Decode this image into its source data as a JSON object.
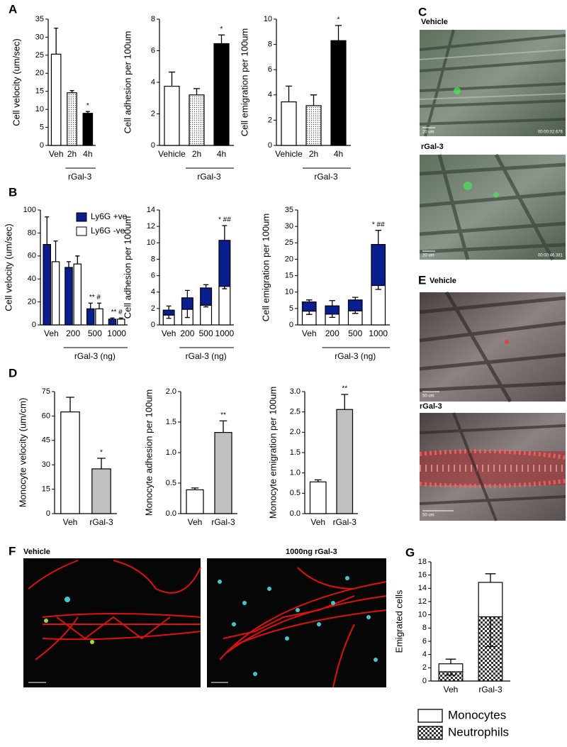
{
  "panel_labels": [
    "A",
    "B",
    "C",
    "D",
    "E",
    "F",
    "G"
  ],
  "images": {
    "C": {
      "vehicle_label": "Vehicle",
      "rgal_label": "rGal-3",
      "scale_1": "20 um",
      "time_1": "00:00:02.676",
      "scale_2": "20 um",
      "time_2": "00:00:46.381"
    },
    "E": {
      "vehicle_label": "Vehicle",
      "rgal_label": "rGal-3",
      "scale_1": "50 um",
      "scale_2": "50 um"
    },
    "F": {
      "vehicle_label": "Vehicle",
      "rgal_label": "1000ng rGal-3"
    }
  },
  "chart_data": [
    {
      "type": "bar",
      "ylabel": "Cell velocity (um/sec)",
      "categories": [
        "Veh",
        "2h",
        "4h"
      ],
      "values": [
        25.3,
        14.6,
        8.9
      ],
      "errors": [
        7.2,
        0.6,
        0.5
      ],
      "colors": [
        "#ffffff",
        "dots",
        "#000000"
      ],
      "annotations": [
        null,
        null,
        "*"
      ],
      "xlabel": "rGal-3",
      "ylim": [
        0,
        35
      ],
      "yticks": [
        0,
        5,
        10,
        15,
        20,
        25,
        30,
        35
      ]
    },
    {
      "type": "bar",
      "ylabel": "Cell adhesion per 100um",
      "categories": [
        "Vehicle",
        "2h",
        "4h"
      ],
      "values": [
        3.75,
        3.2,
        6.45
      ],
      "errors": [
        0.9,
        0.4,
        0.55
      ],
      "colors": [
        "#ffffff",
        "dots",
        "#000000"
      ],
      "annotations": [
        null,
        null,
        "*"
      ],
      "xlabel": "rGal-3",
      "ylim": [
        0,
        8
      ],
      "yticks": [
        0,
        2,
        4,
        6,
        8
      ]
    },
    {
      "type": "bar",
      "ylabel": "Cell emigration per 100um",
      "categories": [
        "Vehicle",
        "2h",
        "4h"
      ],
      "values": [
        3.45,
        3.15,
        8.3
      ],
      "errors": [
        1.25,
        0.85,
        1.2
      ],
      "colors": [
        "#ffffff",
        "dots",
        "#000000"
      ],
      "annotations": [
        null,
        null,
        "*"
      ],
      "xlabel": "rGal-3",
      "ylim": [
        0,
        10
      ],
      "yticks": [
        0,
        2,
        4,
        6,
        8,
        10
      ]
    },
    {
      "type": "bar",
      "ylabel": "Cell velocity (um/sec)",
      "categories": [
        "Veh",
        "200",
        "500",
        "1000"
      ],
      "series": [
        {
          "name": "Ly6G +ve",
          "color": "#0a1f8f",
          "values": [
            70,
            50,
            14,
            5
          ],
          "errors": [
            24,
            5,
            5,
            1
          ]
        },
        {
          "name": "Ly6G -ve",
          "color": "#ffffff",
          "values": [
            55,
            53,
            14,
            5
          ],
          "errors": [
            18,
            7,
            5,
            1
          ]
        }
      ],
      "annotations": [
        null,
        null,
        "** #",
        "** #"
      ],
      "xlabel": "rGal-3 (ng)",
      "legend": "top-right",
      "ylim": [
        0,
        100
      ],
      "yticks": [
        0,
        20,
        40,
        60,
        80,
        100
      ]
    },
    {
      "type": "bar",
      "stacked": true,
      "ylabel": "Cell adhesion per 100um",
      "categories": [
        "Veh",
        "200",
        "500",
        "1000"
      ],
      "series": [
        {
          "color": "#ffffff",
          "values": [
            1.2,
            1.9,
            2.4,
            4.7
          ],
          "errors": [
            0.4,
            1.0,
            0.2,
            0.3
          ]
        },
        {
          "color": "#0a1f8f",
          "values": [
            0.6,
            1.4,
            2.1,
            5.6
          ],
          "errors": [
            0.5,
            0.9,
            0.4,
            1.8
          ]
        }
      ],
      "annotations": [
        null,
        null,
        null,
        "* ##"
      ],
      "xlabel": "rGal-3 (ng)",
      "ylim": [
        0,
        14
      ],
      "yticks": [
        0,
        2,
        4,
        6,
        8,
        10,
        12,
        14
      ]
    },
    {
      "type": "bar",
      "stacked": true,
      "ylabel": "Cell emigration per 100um",
      "categories": [
        "Veh",
        "200",
        "500",
        "1000"
      ],
      "series": [
        {
          "color": "#ffffff",
          "values": [
            4.2,
            3.3,
            4.3,
            12
          ],
          "errors": [
            1,
            1,
            0.8,
            1.2
          ]
        },
        {
          "color": "#0a1f8f",
          "values": [
            2.8,
            2.5,
            3.3,
            12.5
          ],
          "errors": [
            0.6,
            1.6,
            0.8,
            4.3
          ]
        }
      ],
      "annotations": [
        null,
        null,
        null,
        "* ##"
      ],
      "xlabel": "rGal-3 (ng)",
      "ylim": [
        0,
        35
      ],
      "yticks": [
        0,
        5,
        10,
        15,
        20,
        25,
        30,
        35
      ]
    },
    {
      "type": "bar",
      "ylabel": "Monocyte velocity (um/cm)",
      "categories": [
        "Veh",
        "rGal-3"
      ],
      "values": [
        62.5,
        27.5
      ],
      "errors": [
        9,
        6.5
      ],
      "colors": [
        "#ffffff",
        "#c0c0c0"
      ],
      "annotations": [
        null,
        "*"
      ],
      "ylim": [
        0,
        75
      ],
      "yticks": [
        0,
        15,
        30,
        45,
        60,
        75
      ]
    },
    {
      "type": "bar",
      "ylabel": "Monocyte adhesion per 100um",
      "categories": [
        "Veh",
        "rGal-3"
      ],
      "values": [
        0.39,
        1.33
      ],
      "errors": [
        0.03,
        0.19
      ],
      "colors": [
        "#ffffff",
        "#c0c0c0"
      ],
      "annotations": [
        null,
        "**"
      ],
      "ylim": [
        0,
        2
      ],
      "yticks": [
        {
          "value": 0,
          "label": "0.0"
        },
        0.5,
        {
          "value": 1,
          "label": "1.0"
        },
        1.5,
        {
          "value": 2,
          "label": "2.0"
        }
      ]
    },
    {
      "type": "bar",
      "ylabel": "Monocyte emigration per 100um",
      "categories": [
        "Veh",
        "rGal-3"
      ],
      "values": [
        0.78,
        2.56
      ],
      "errors": [
        0.05,
        0.37
      ],
      "colors": [
        "#ffffff",
        "#c0c0c0"
      ],
      "annotations": [
        null,
        "**"
      ],
      "ylim": [
        0,
        3
      ],
      "yticks": [
        {
          "value": 0,
          "label": "0.0"
        },
        0.5,
        {
          "value": 1,
          "label": "1.0"
        },
        1.5,
        {
          "value": 2,
          "label": "2.0"
        },
        2.5,
        {
          "value": 3,
          "label": "3.0"
        }
      ]
    },
    {
      "type": "bar",
      "stacked": true,
      "ylabel": "Emigrated cells",
      "categories": [
        "Veh",
        "rGal-3"
      ],
      "series": [
        {
          "name": "Neutrophils",
          "color": "checker",
          "values": [
            1.4,
            9.7
          ],
          "errors": [
            0.5,
            4.5
          ]
        },
        {
          "name": "Monocytes",
          "color": "#ffffff",
          "values": [
            1.2,
            5.2
          ],
          "errors": [
            0.7,
            1.3
          ]
        }
      ],
      "legend": "below",
      "ylim": [
        0,
        18
      ],
      "yticks": [
        0,
        2,
        4,
        6,
        8,
        10,
        12,
        14,
        16,
        18
      ]
    }
  ]
}
